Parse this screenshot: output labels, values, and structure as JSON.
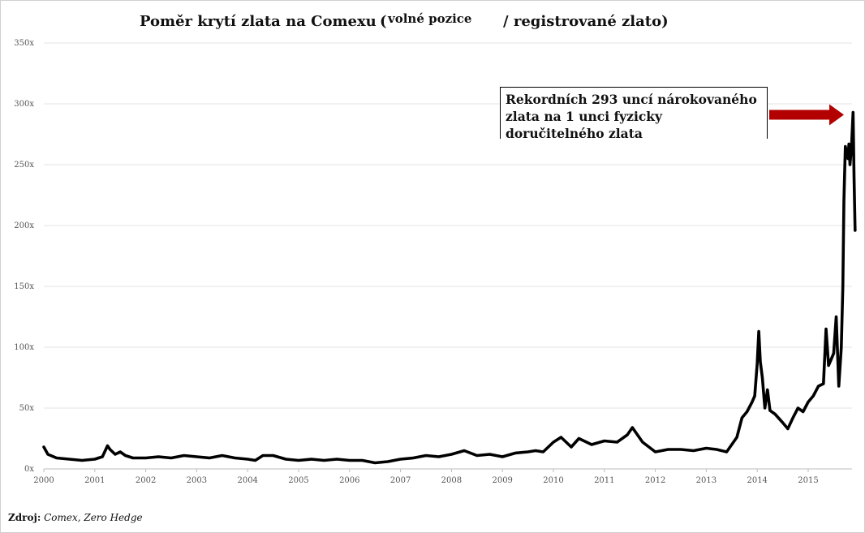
{
  "chart_data": {
    "type": "line",
    "title": "Poměr krytí zlata na Comexu",
    "title_open": "(",
    "title_sub": "volné pozice",
    "title_close": "/ registrované zlato)",
    "annotation": "Rekordních 293 uncí nárokovaného zlata na 1 unci fyzicky doručitelného zlata",
    "source_label": "Zdroj:",
    "source_value": "Comex, Zero Hedge",
    "x_ticks": [
      "2000",
      "2001",
      "2002",
      "2003",
      "2004",
      "2005",
      "2006",
      "2007",
      "2008",
      "2009",
      "2010",
      "2011",
      "2012",
      "2013",
      "2014",
      "2015"
    ],
    "y_ticks": [
      "0x",
      "50x",
      "100x",
      "150x",
      "200x",
      "250x",
      "300x",
      "350x"
    ],
    "ylim": [
      0,
      350
    ],
    "xlim": [
      2000.0,
      2015.92
    ],
    "grid": true,
    "line_color": "#000000",
    "arrow_color": "#b30000",
    "series": [
      {
        "x": [
          2000.0,
          2000.08,
          2000.25,
          2000.5,
          2000.75,
          2001.0,
          2001.15,
          2001.25,
          2001.3,
          2001.4,
          2001.5,
          2001.6,
          2001.75,
          2002.0,
          2002.25,
          2002.5,
          2002.75,
          2003.0,
          2003.25,
          2003.5,
          2003.75,
          2004.0,
          2004.15,
          2004.3,
          2004.5,
          2004.75,
          2005.0,
          2005.25,
          2005.5,
          2005.75,
          2006.0,
          2006.25,
          2006.5,
          2006.75,
          2007.0,
          2007.25,
          2007.5,
          2007.75,
          2008.0,
          2008.25,
          2008.5,
          2008.75,
          2009.0,
          2009.25,
          2009.5,
          2009.65,
          2009.8,
          2010.0,
          2010.15,
          2010.35,
          2010.5,
          2010.75,
          2011.0,
          2011.25,
          2011.45,
          2011.55,
          2011.75,
          2012.0,
          2012.25,
          2012.5,
          2012.75,
          2013.0,
          2013.2,
          2013.4,
          2013.6,
          2013.7,
          2013.8,
          2013.9,
          2013.95,
          2014.0,
          2014.03,
          2014.06,
          2014.1,
          2014.15,
          2014.2,
          2014.25,
          2014.35,
          2014.5,
          2014.6,
          2014.7,
          2014.8,
          2014.9,
          2015.0,
          2015.1,
          2015.2,
          2015.3,
          2015.35,
          2015.4,
          2015.45,
          2015.5,
          2015.55,
          2015.6,
          2015.65,
          2015.68,
          2015.7,
          2015.73,
          2015.76,
          2015.78,
          2015.8,
          2015.82,
          2015.85,
          2015.88,
          2015.9,
          2015.92
        ],
        "y": [
          18,
          12,
          9,
          8,
          7,
          8,
          10,
          19,
          16,
          12,
          14,
          11,
          9,
          9,
          10,
          9,
          11,
          10,
          9,
          11,
          9,
          8,
          7,
          11,
          11,
          8,
          7,
          8,
          7,
          8,
          7,
          7,
          5,
          6,
          8,
          9,
          11,
          10,
          12,
          15,
          11,
          12,
          10,
          13,
          14,
          15,
          14,
          22,
          26,
          18,
          25,
          20,
          23,
          22,
          28,
          34,
          22,
          14,
          16,
          16,
          15,
          17,
          16,
          14,
          26,
          42,
          47,
          55,
          60,
          87,
          113,
          88,
          75,
          50,
          65,
          48,
          45,
          38,
          33,
          42,
          50,
          47,
          55,
          60,
          68,
          70,
          115,
          85,
          90,
          95,
          125,
          68,
          100,
          150,
          220,
          265,
          258,
          255,
          267,
          250,
          265,
          293,
          240,
          196
        ]
      }
    ]
  }
}
